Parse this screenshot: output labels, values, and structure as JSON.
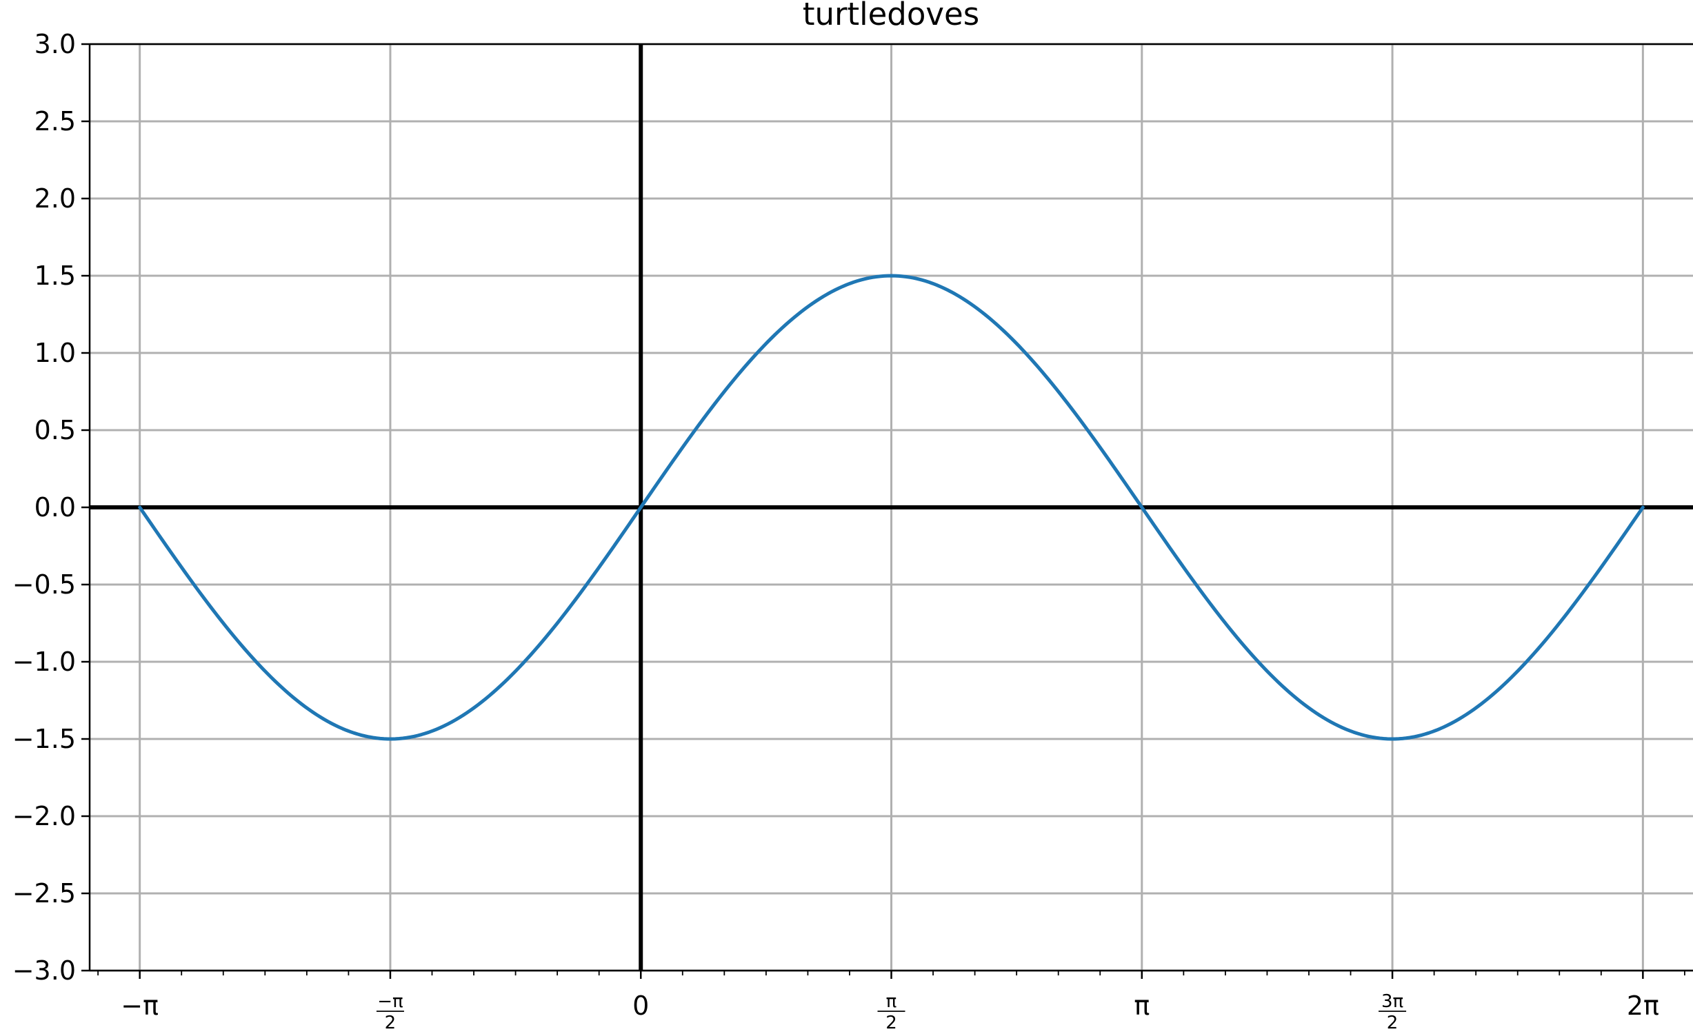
{
  "chart_data": {
    "type": "line",
    "title": "turtledoves",
    "xlabel": "",
    "ylabel": "",
    "xlim": [
      -3.4558,
      6.5973
    ],
    "ylim": [
      -3.0,
      3.0
    ],
    "grid": true,
    "legend": "none",
    "series": [
      {
        "function": "1.5*sin(x)",
        "color": "#1f77b4",
        "x": [
          -3.1416,
          -2.7489,
          -2.3562,
          -1.9635,
          -1.5708,
          -1.1781,
          -0.7854,
          -0.3927,
          0.0,
          0.3927,
          0.7854,
          1.1781,
          1.5708,
          1.9635,
          2.3562,
          2.7489,
          3.1416,
          3.5343,
          3.927,
          4.3197,
          4.7124,
          5.1051,
          5.4978,
          5.8905,
          6.2832
        ],
        "y": [
          0.0,
          -0.574,
          -1.061,
          -1.386,
          -1.5,
          -1.386,
          -1.061,
          -0.574,
          0.0,
          0.574,
          1.061,
          1.386,
          1.5,
          1.386,
          1.061,
          0.574,
          0.0,
          -0.574,
          -1.061,
          -1.386,
          -1.5,
          -1.386,
          -1.061,
          -0.574,
          0.0
        ]
      }
    ],
    "y_ticks": [
      {
        "value": -3.0,
        "label": "−3.0"
      },
      {
        "value": -2.5,
        "label": "−2.5"
      },
      {
        "value": -2.0,
        "label": "−2.0"
      },
      {
        "value": -1.5,
        "label": "−1.5"
      },
      {
        "value": -1.0,
        "label": "−1.0"
      },
      {
        "value": -0.5,
        "label": "−0.5"
      },
      {
        "value": 0.0,
        "label": "0.0"
      },
      {
        "value": 0.5,
        "label": "0.5"
      },
      {
        "value": 1.0,
        "label": "1.0"
      },
      {
        "value": 1.5,
        "label": "1.5"
      },
      {
        "value": 2.0,
        "label": "2.0"
      },
      {
        "value": 2.5,
        "label": "2.5"
      },
      {
        "value": 3.0,
        "label": "3.0"
      }
    ],
    "x_ticks": [
      {
        "value": -3.1416,
        "label": "−π"
      },
      {
        "value": -1.5708,
        "num": "−π",
        "den": "2"
      },
      {
        "value": 0.0,
        "label": "0"
      },
      {
        "value": 1.5708,
        "num": "π",
        "den": "2"
      },
      {
        "value": 3.1416,
        "label": "π"
      },
      {
        "value": 4.7124,
        "num": "3π",
        "den": "2"
      },
      {
        "value": 6.2832,
        "label": "2π"
      }
    ],
    "x_minor_step": 0.2618,
    "axis_lines": {
      "x_at_y": 0,
      "y_at_x": 0,
      "color": "#000000"
    },
    "grid_color": "#b0b0b0"
  }
}
